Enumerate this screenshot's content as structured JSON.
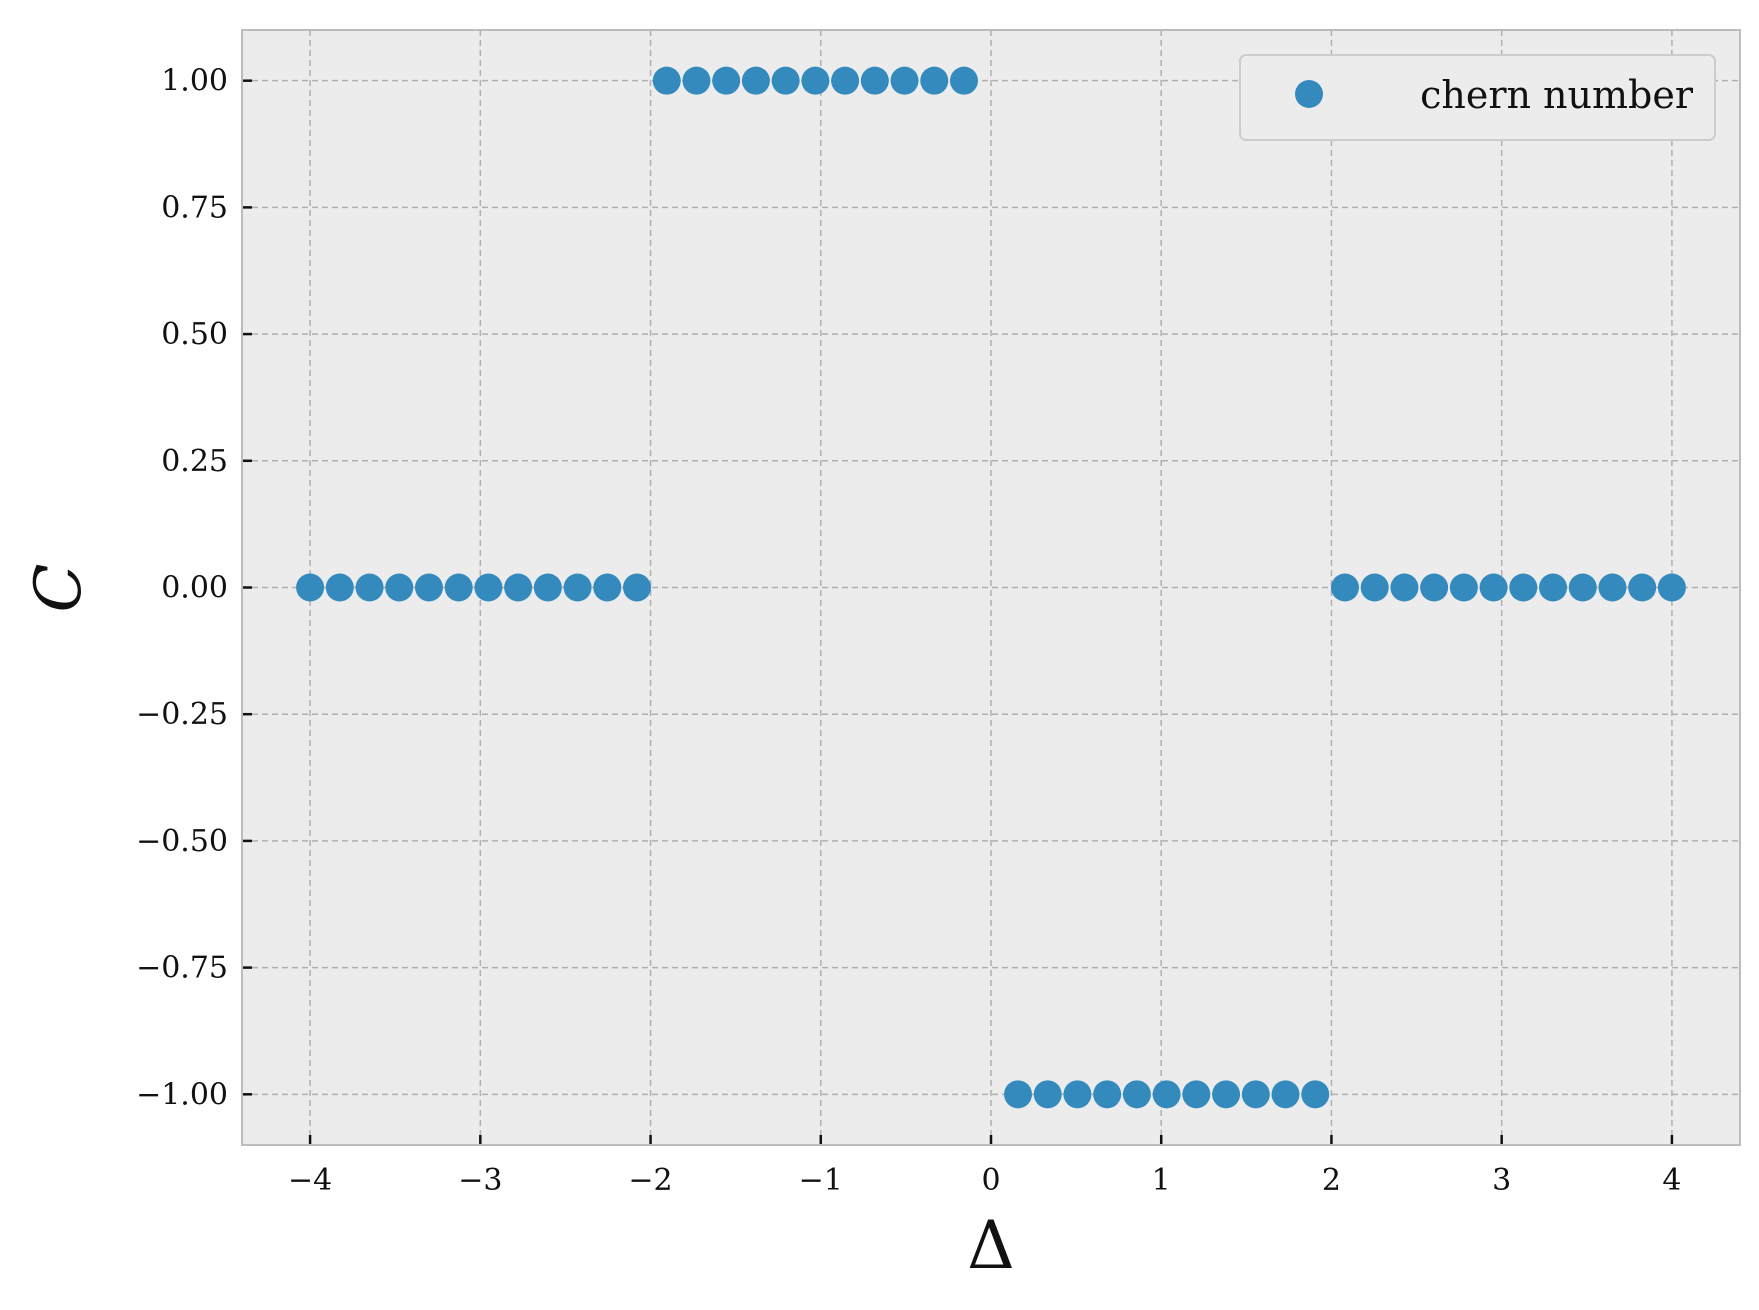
{
  "chart_data": {
    "type": "scatter",
    "title": "",
    "xlabel": "Δ",
    "ylabel": "C",
    "xlim": [
      -4.4,
      4.4
    ],
    "ylim": [
      -1.1,
      1.1
    ],
    "xticks": [
      -4,
      -3,
      -2,
      -1,
      0,
      1,
      2,
      3,
      4
    ],
    "xtick_labels": [
      "−4",
      "−3",
      "−2",
      "−1",
      "0",
      "1",
      "2",
      "3",
      "4"
    ],
    "yticks": [
      1.0,
      0.75,
      0.5,
      0.25,
      0.0,
      -0.25,
      -0.5,
      -0.75,
      -1.0
    ],
    "ytick_labels": [
      "1.00",
      "0.75",
      "0.50",
      "0.25",
      "0.00",
      "−0.25",
      "−0.50",
      "−0.75",
      "−1.00"
    ],
    "grid": true,
    "legend": {
      "position": "top-right",
      "entries": [
        "chern number"
      ]
    },
    "colors": {
      "series": "#348abd",
      "plot_background": "#ececec",
      "spine": "#bcbcbc",
      "grid": "#b0b0b0"
    },
    "series": [
      {
        "name": "chern number",
        "x": [
          -4.0,
          -3.8254,
          -3.6508,
          -3.4762,
          -3.3016,
          -3.127,
          -2.9524,
          -2.7778,
          -2.6032,
          -2.4286,
          -2.254,
          -2.0794,
          -1.9048,
          -1.7302,
          -1.5556,
          -1.381,
          -1.2063,
          -1.0317,
          -0.8571,
          -0.6825,
          -0.5079,
          -0.3333,
          -0.1587,
          0.1587,
          0.3333,
          0.5079,
          0.6825,
          0.8571,
          1.0317,
          1.2063,
          1.381,
          1.5556,
          1.7302,
          1.9048,
          2.0794,
          2.254,
          2.4286,
          2.6032,
          2.7778,
          2.9524,
          3.127,
          3.3016,
          3.4762,
          3.6508,
          3.8254,
          4.0
        ],
        "y": [
          0,
          0,
          0,
          0,
          0,
          0,
          0,
          0,
          0,
          0,
          0,
          0,
          1,
          1,
          1,
          1,
          1,
          1,
          1,
          1,
          1,
          1,
          1,
          -1,
          -1,
          -1,
          -1,
          -1,
          -1,
          -1,
          -1,
          -1,
          -1,
          -1,
          0,
          0,
          0,
          0,
          0,
          0,
          0,
          0,
          0,
          0,
          0,
          0
        ]
      }
    ]
  }
}
